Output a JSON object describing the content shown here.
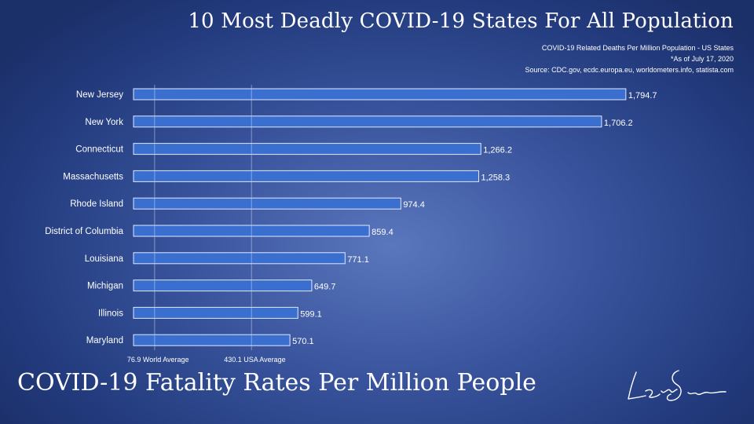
{
  "chart_data": {
    "type": "bar",
    "orientation": "horizontal",
    "title": "10 Most Deadly COVID-19 States For All Population",
    "subtitle_lines": [
      "COVID-19 Related Deaths Per Million Population - US States",
      "*As of July 17, 2020",
      "Source: CDC.gov, ecdc.europa.eu, worldometers.info, statista.com"
    ],
    "categories": [
      "New Jersey",
      "New York",
      "Connecticut",
      "Massachusetts",
      "Rhode Island",
      "District of Columbia",
      "Louisiana",
      "Michigan",
      "Illinois",
      "Maryland"
    ],
    "values": [
      1794.7,
      1706.2,
      1266.2,
      1258.3,
      974.4,
      859.4,
      771.1,
      649.7,
      599.1,
      570.1
    ],
    "value_labels": [
      "1,794.7",
      "1,706.2",
      "1,266.2",
      "1,258.3",
      "974.4",
      "859.4",
      "771.1",
      "649.7",
      "599.1",
      "570.1"
    ],
    "reference_lines": [
      {
        "value": 76.9,
        "label": "76.9 World Average"
      },
      {
        "value": 430.1,
        "label": "430.1 USA Average"
      }
    ],
    "xlim": [
      0,
      2050
    ],
    "grid": false,
    "bar_color": "#3a6fd0"
  },
  "footer_title": "COVID-19 Fatality Rates Per Million People",
  "signature_text": "Leon Shirvanian"
}
